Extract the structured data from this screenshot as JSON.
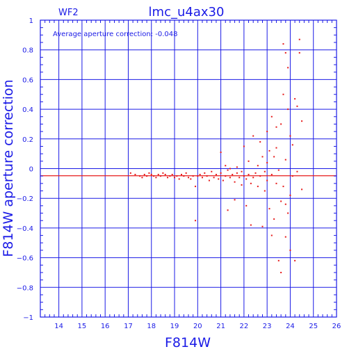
{
  "chart_data": {
    "type": "scatter",
    "title": "lmc_u4ax30",
    "panel_label": "WF2",
    "annotation": "Average aperture correction: -0.048",
    "xlabel": "F814W",
    "ylabel": "F814W aperture correction",
    "xlim": [
      13.2,
      26
    ],
    "ylim": [
      -1,
      1
    ],
    "x_ticks": [
      14,
      15,
      16,
      17,
      18,
      19,
      20,
      21,
      22,
      23,
      24,
      25,
      26
    ],
    "y_ticks": [
      -1,
      -0.8,
      -0.6,
      -0.4,
      -0.2,
      0,
      0.2,
      0.4,
      0.6,
      0.8,
      1
    ],
    "x_tick_labels": [
      "14",
      "15",
      "16",
      "17",
      "18",
      "19",
      "20",
      "21",
      "22",
      "23",
      "24",
      "25",
      "26"
    ],
    "y_tick_labels": [
      "−1",
      "−0.8",
      "−0.6",
      "−0.4",
      "−0.2",
      "0",
      "0.2",
      "0.4",
      "0.6",
      "0.8",
      "1"
    ],
    "grid": true,
    "reference_lines": [
      {
        "axis": "y",
        "value": -0.048,
        "color": "#e61a1a"
      }
    ],
    "colors": {
      "axes": "#1a1ae6",
      "points": "#e61a1a"
    },
    "points": [
      [
        17.1,
        -0.03
      ],
      [
        17.3,
        -0.04
      ],
      [
        17.5,
        -0.05
      ],
      [
        17.6,
        -0.06
      ],
      [
        17.7,
        -0.04
      ],
      [
        17.8,
        -0.05
      ],
      [
        17.9,
        -0.03
      ],
      [
        18.0,
        -0.04
      ],
      [
        18.1,
        -0.05
      ],
      [
        18.2,
        -0.06
      ],
      [
        18.3,
        -0.04
      ],
      [
        18.4,
        -0.05
      ],
      [
        18.5,
        -0.03
      ],
      [
        18.6,
        -0.04
      ],
      [
        18.7,
        -0.06
      ],
      [
        18.8,
        -0.05
      ],
      [
        18.9,
        -0.04
      ],
      [
        19.0,
        -0.06
      ],
      [
        19.1,
        -0.05
      ],
      [
        19.2,
        -0.07
      ],
      [
        19.3,
        -0.04
      ],
      [
        19.4,
        -0.05
      ],
      [
        19.5,
        -0.03
      ],
      [
        19.6,
        -0.06
      ],
      [
        19.7,
        -0.07
      ],
      [
        19.8,
        -0.05
      ],
      [
        19.9,
        -0.12
      ],
      [
        19.9,
        -0.35
      ],
      [
        20.0,
        -0.05
      ],
      [
        20.1,
        -0.04
      ],
      [
        20.2,
        -0.06
      ],
      [
        20.3,
        -0.03
      ],
      [
        20.4,
        -0.05
      ],
      [
        20.5,
        -0.08
      ],
      [
        20.6,
        -0.02
      ],
      [
        20.7,
        -0.06
      ],
      [
        20.8,
        -0.04
      ],
      [
        20.9,
        -0.07
      ],
      [
        21.0,
        -0.03
      ],
      [
        21.0,
        0.11
      ],
      [
        21.1,
        -0.08
      ],
      [
        21.2,
        -0.05
      ],
      [
        21.3,
        -0.01
      ],
      [
        21.3,
        -0.28
      ],
      [
        21.4,
        -0.06
      ],
      [
        21.5,
        -0.04
      ],
      [
        21.6,
        -0.09
      ],
      [
        21.6,
        -0.21
      ],
      [
        21.7,
        -0.03
      ],
      [
        21.8,
        -0.06
      ],
      [
        21.9,
        -0.02
      ],
      [
        22.0,
        -0.05
      ],
      [
        22.0,
        0.15
      ],
      [
        22.1,
        -0.07
      ],
      [
        22.1,
        -0.25
      ],
      [
        22.2,
        -0.04
      ],
      [
        22.2,
        0.05
      ],
      [
        22.3,
        -0.38
      ],
      [
        22.4,
        -0.06
      ],
      [
        22.4,
        0.22
      ],
      [
        22.5,
        -0.03
      ],
      [
        22.6,
        -0.12
      ],
      [
        22.6,
        0.02
      ],
      [
        22.7,
        -0.05
      ],
      [
        22.8,
        0.08
      ],
      [
        22.8,
        -0.39
      ],
      [
        22.9,
        -0.02
      ],
      [
        22.9,
        -0.15
      ],
      [
        23.0,
        0.04
      ],
      [
        23.0,
        -0.08
      ],
      [
        23.1,
        0.12
      ],
      [
        23.1,
        -0.27
      ],
      [
        23.2,
        -0.04
      ],
      [
        23.2,
        0.35
      ],
      [
        23.3,
        0.08
      ],
      [
        23.3,
        -0.34
      ],
      [
        23.4,
        -0.1
      ],
      [
        23.4,
        0.14
      ],
      [
        23.5,
        -0.01
      ],
      [
        23.5,
        -0.62
      ],
      [
        23.6,
        0.3
      ],
      [
        23.6,
        -0.22
      ],
      [
        23.6,
        -0.7
      ],
      [
        23.7,
        0.84
      ],
      [
        23.7,
        0.5
      ],
      [
        23.7,
        -0.12
      ],
      [
        23.8,
        0.78
      ],
      [
        23.8,
        0.06
      ],
      [
        23.8,
        -0.46
      ],
      [
        23.9,
        0.68
      ],
      [
        23.9,
        -0.3
      ],
      [
        23.9,
        0.4
      ],
      [
        24.0,
        0.22
      ],
      [
        24.0,
        -0.18
      ],
      [
        24.0,
        -0.55
      ],
      [
        24.1,
        0.16
      ],
      [
        24.1,
        -0.05
      ],
      [
        24.2,
        0.47
      ],
      [
        24.2,
        -0.62
      ],
      [
        24.3,
        0.42
      ],
      [
        24.3,
        -0.02
      ],
      [
        24.4,
        0.87
      ],
      [
        24.4,
        0.78
      ],
      [
        24.5,
        0.32
      ],
      [
        24.5,
        -0.14
      ],
      [
        21.2,
        0.02
      ],
      [
        21.4,
        0.0
      ],
      [
        21.7,
        0.01
      ],
      [
        21.9,
        -0.11
      ],
      [
        22.3,
        -0.1
      ],
      [
        22.7,
        0.18
      ],
      [
        23.0,
        0.25
      ],
      [
        23.2,
        -0.45
      ],
      [
        23.4,
        0.28
      ],
      [
        23.8,
        -0.24
      ]
    ]
  }
}
